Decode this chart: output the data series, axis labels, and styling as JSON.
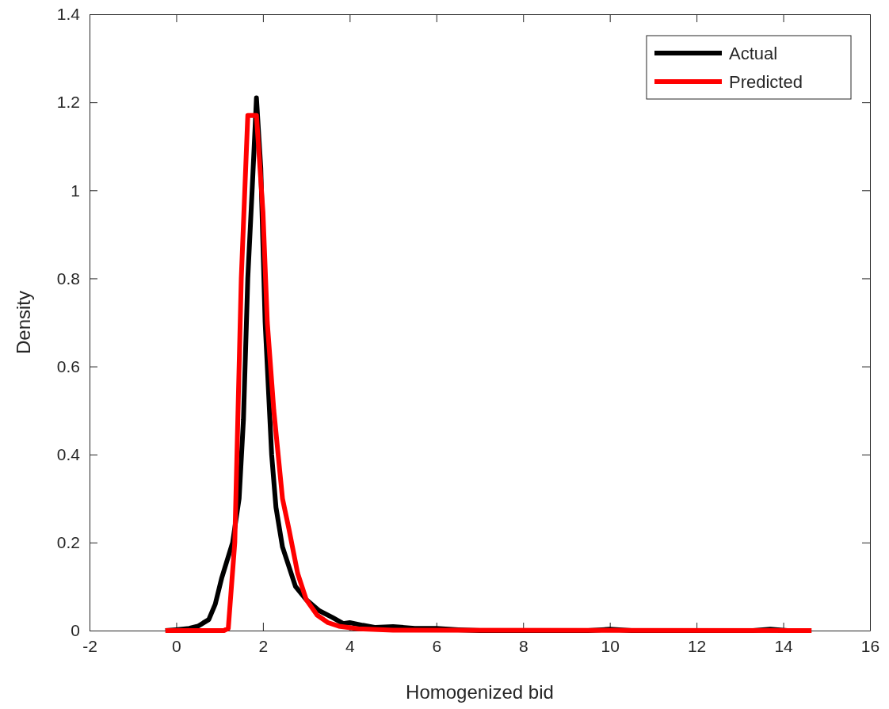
{
  "chart_data": {
    "type": "line",
    "xlabel": "Homogenized bid",
    "ylabel": "Density",
    "xlim": [
      -2,
      16
    ],
    "xticks": [
      -2,
      0,
      2,
      4,
      6,
      8,
      10,
      12,
      14,
      16
    ],
    "ylim": [
      0,
      1.4
    ],
    "yticks": [
      0,
      0.2,
      0.4,
      0.6,
      0.8,
      1,
      1.2,
      1.4
    ],
    "grid": false,
    "legend": "top right",
    "marker": "none",
    "line_style": "solid",
    "series": [
      {
        "name": "Actual",
        "color": "#000000",
        "x": [
          -0.25,
          0,
          0.3,
          0.5,
          0.75,
          0.9,
          1.05,
          1.3,
          1.45,
          1.55,
          1.65,
          1.75,
          1.85,
          1.95,
          2.05,
          2.2,
          2.3,
          2.45,
          2.75,
          3,
          3.3,
          3.6,
          3.85,
          4,
          4.3,
          4.6,
          5,
          5.5,
          6,
          6.5,
          7,
          9.5,
          10,
          10.5,
          13.3,
          13.7,
          14.1,
          14.65
        ],
        "values": [
          0,
          0.002,
          0.005,
          0.01,
          0.025,
          0.06,
          0.12,
          0.2,
          0.3,
          0.48,
          0.8,
          1,
          1.21,
          1.05,
          0.7,
          0.4,
          0.28,
          0.19,
          0.1,
          0.07,
          0.045,
          0.03,
          0.016,
          0.018,
          0.012,
          0.007,
          0.009,
          0.005,
          0.005,
          0.002,
          0,
          0,
          0.003,
          0,
          0,
          0.003,
          0,
          0
        ]
      },
      {
        "name": "Predicted",
        "color": "#ff0000",
        "x": [
          -0.25,
          1.1,
          1.2,
          1.35,
          1.5,
          1.65,
          1.85,
          2,
          2.1,
          2.25,
          2.45,
          2.6,
          2.8,
          3,
          3.25,
          3.5,
          3.75,
          4.2,
          5,
          14.65
        ],
        "values": [
          0,
          0,
          0.005,
          0.2,
          0.8,
          1.17,
          1.17,
          0.95,
          0.7,
          0.5,
          0.3,
          0.23,
          0.13,
          0.07,
          0.035,
          0.018,
          0.01,
          0.004,
          0.001,
          0
        ]
      }
    ]
  }
}
